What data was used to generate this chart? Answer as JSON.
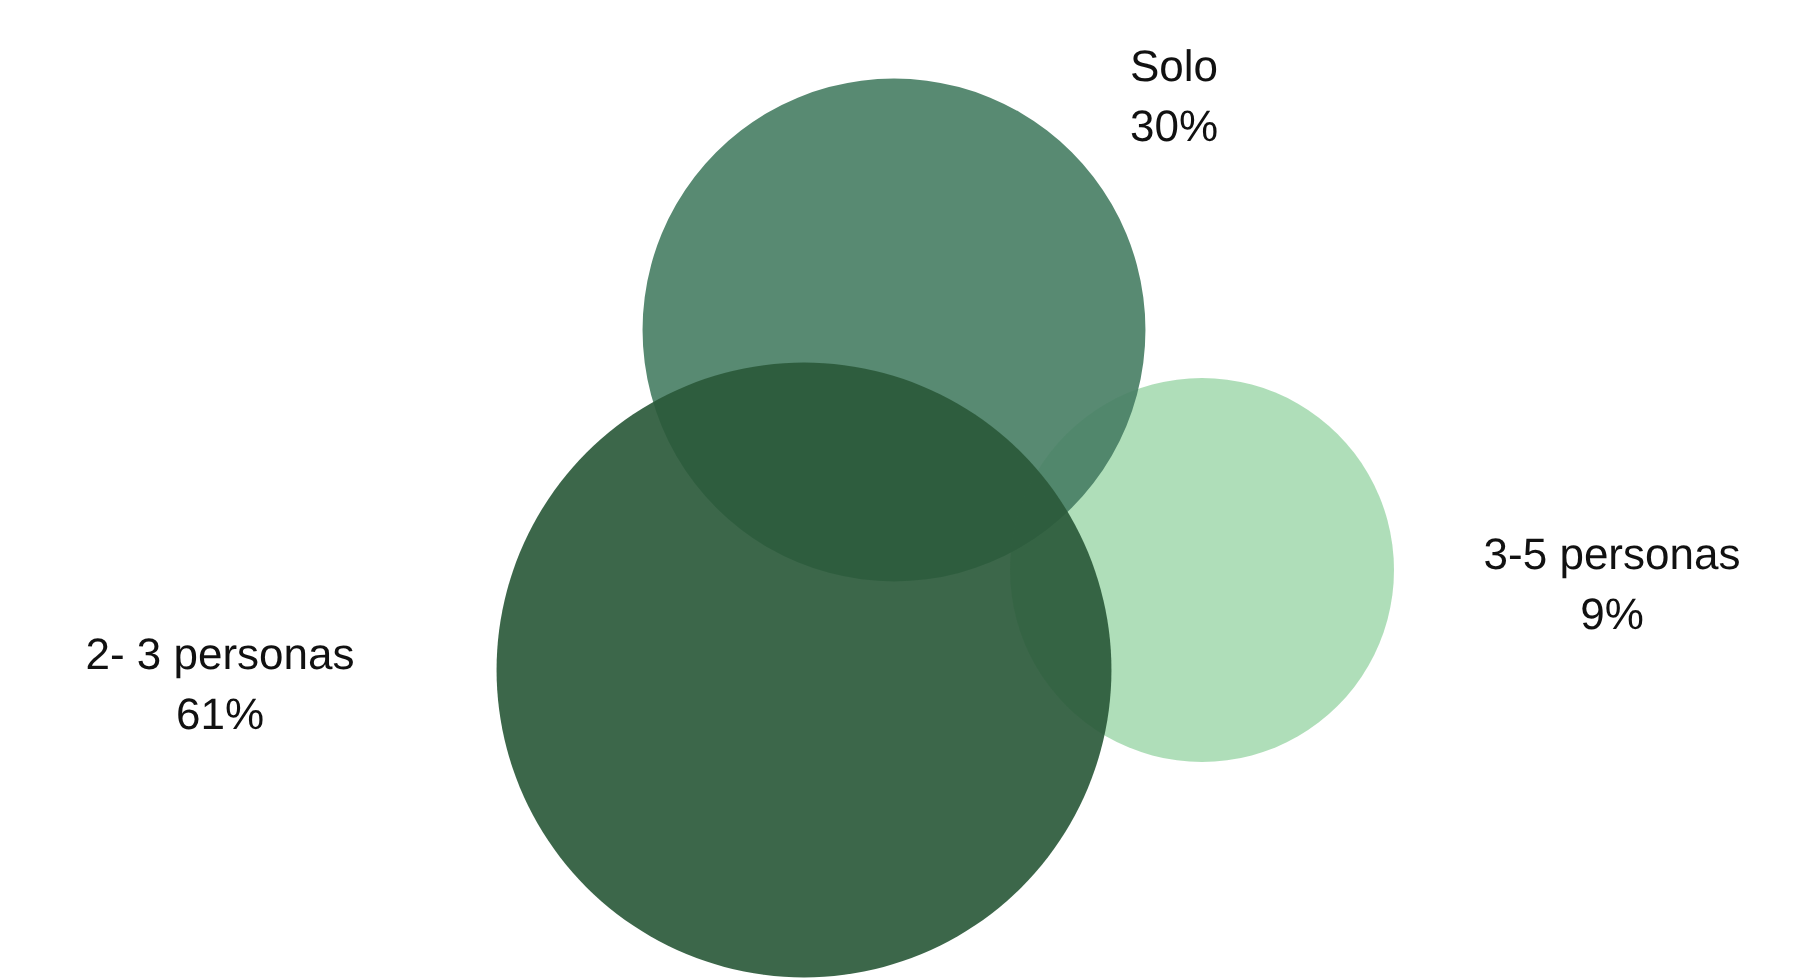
{
  "chart_data": {
    "type": "other",
    "categories": [
      "Solo",
      "3-5 personas",
      "2- 3 personas"
    ],
    "values": [
      30,
      9,
      61
    ],
    "value_labels": [
      "30%",
      "9%",
      "61%"
    ],
    "colors": [
      "#4a8066",
      "#a8dbb3",
      "#2b5a3b"
    ]
  }
}
